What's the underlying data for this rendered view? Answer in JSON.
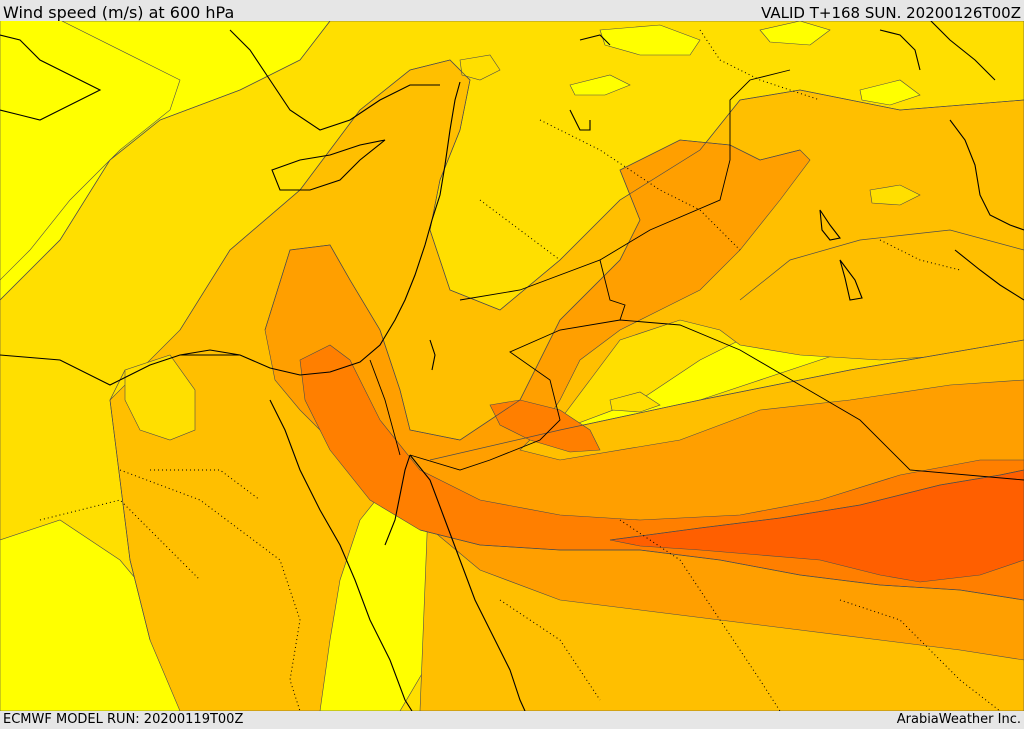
{
  "header": {
    "title": "Wind speed (m/s) at 600 hPa",
    "valid": "VALID T+168 SUN. 20200126T00Z"
  },
  "footer": {
    "model_run": "ECMWF MODEL RUN: 20200119T00Z",
    "credit": "ArabiaWeather Inc."
  },
  "map": {
    "field": "wind speed at 600 hPa",
    "palette": {
      "band_1": "#ffff00",
      "band_2": "#ffdf00",
      "band_3": "#ffbf00",
      "band_4": "#ff9f00",
      "band_5": "#ff7f00",
      "band_6": "#ff5f00",
      "calm": "#ffdfa0",
      "coastline": "#000000",
      "contour": "#4d4d4d",
      "border": "#000000"
    }
  }
}
